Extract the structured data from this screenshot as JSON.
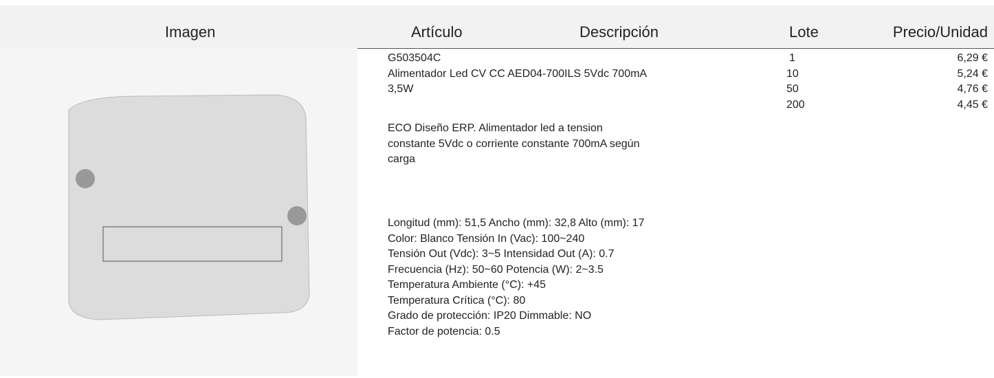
{
  "header": [
    "Imagen",
    "Artículo",
    "Descripción",
    "Lote",
    "Precio/Unidad"
  ],
  "row": {
    "article": "G503504C",
    "description": [
      [
        "Alimentador Led CV CC AED04-700ILS 5Vdc 700mA",
        "3,5W"
      ],
      [
        "ECO Diseño ERP. Alimentador led a tension",
        "constante 5Vdc o corriente constante 700mA según",
        "carga"
      ],
      [
        "Longitud (mm): 51,5 Ancho (mm): 32,8 Alto (mm): 17",
        "Color: Blanco Tensión In (Vac): 100~240",
        "Tensión Out (Vdc): 3~5 Intensidad Out (A): 0.7",
        "Frecuencia (Hz): 50~60 Potencia (W): 2~3.5",
        "Temperatura Ambiente (°C): +45",
        "Temperatura Crítica (°C): 80",
        "Grado de protección: IP20 Dimmable: NO",
        "Factor de potencia: 0.5"
      ]
    ],
    "lots": [
      [
        "1",
        "6,29 €"
      ],
      [
        "10",
        "5,24 €"
      ],
      [
        "50",
        "4,76 €"
      ],
      [
        "200",
        "4,45 €"
      ]
    ]
  }
}
